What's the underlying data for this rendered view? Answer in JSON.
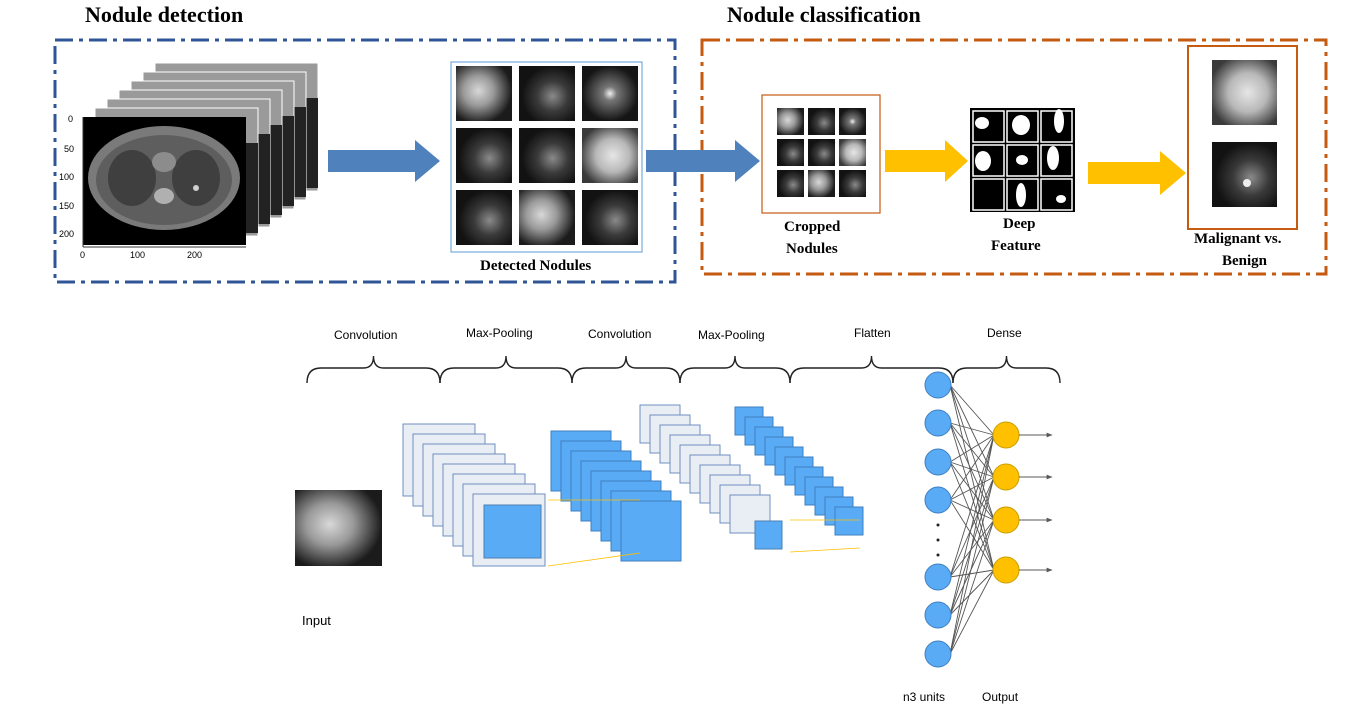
{
  "sections": {
    "detection": {
      "title": "Nodule detection",
      "border_color": "#2f5597",
      "ct_axis": {
        "y_ticks": [
          "0",
          "50",
          "100",
          "150",
          "200"
        ],
        "x_ticks": [
          "0",
          "100",
          "200"
        ]
      },
      "detected_caption": "Detected Nodules"
    },
    "classification": {
      "title": "Nodule classification",
      "border_color": "#c55a11",
      "cropped_caption_line1": "Cropped",
      "cropped_caption_line2": "Nodules",
      "feature_caption_line1": "Deep",
      "feature_caption_line2": "Feature",
      "result_caption_line1": "Malignant vs.",
      "result_caption_line2": "Benign"
    }
  },
  "cnn": {
    "stages": [
      "Convolution",
      "Max-Pooling",
      "Convolution",
      "Max-Pooling",
      "Flatten",
      "Dense"
    ],
    "input_label": "Input",
    "units_label": "n3 units",
    "output_label": "Output",
    "colors": {
      "blue_fill": "#5aabf5",
      "light_fill": "#e9edf4",
      "node_blue": "#5aabf5",
      "node_orange": "#ffc000",
      "flow_arrow_blue": "#4f81bd",
      "flow_arrow_yellow": "#ffc000"
    }
  }
}
